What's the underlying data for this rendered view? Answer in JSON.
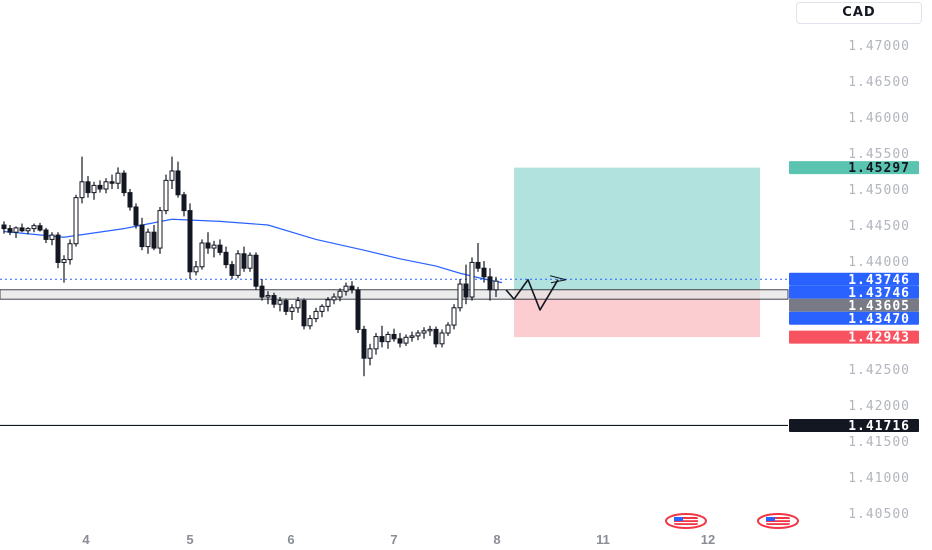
{
  "currency_label": "CAD",
  "chart_data": {
    "type": "candlestick",
    "y_axis": {
      "ticks": [
        "1.47000",
        "1.46500",
        "1.46000",
        "1.45500",
        "1.45000",
        "1.44500",
        "1.44000",
        "1.42500",
        "1.42000",
        "1.41500",
        "1.41000",
        "1.40500"
      ],
      "range": [
        1.4035,
        1.4755
      ]
    },
    "x_axis": {
      "ticks": [
        "4",
        "5",
        "6",
        "7",
        "8",
        "11",
        "12"
      ]
    },
    "candles": [
      [
        1.445,
        1.4455,
        1.4438,
        1.4445
      ],
      [
        1.4445,
        1.445,
        1.4436,
        1.444
      ],
      [
        1.444,
        1.4448,
        1.4432,
        1.4446
      ],
      [
        1.4446,
        1.4452,
        1.444,
        1.4442
      ],
      [
        1.4442,
        1.4447,
        1.4437,
        1.4445
      ],
      [
        1.4445,
        1.4452,
        1.444,
        1.4449
      ],
      [
        1.4449,
        1.4453,
        1.4441,
        1.4443
      ],
      [
        1.4443,
        1.4446,
        1.4425,
        1.443
      ],
      [
        1.443,
        1.444,
        1.4422,
        1.4436
      ],
      [
        1.4436,
        1.444,
        1.439,
        1.4398
      ],
      [
        1.4398,
        1.4408,
        1.437,
        1.4402
      ],
      [
        1.4402,
        1.443,
        1.4395,
        1.4424
      ],
      [
        1.4424,
        1.4492,
        1.442,
        1.4488
      ],
      [
        1.4488,
        1.4545,
        1.448,
        1.451
      ],
      [
        1.451,
        1.4518,
        1.4488,
        1.4495
      ],
      [
        1.4495,
        1.451,
        1.4485,
        1.4505
      ],
      [
        1.4505,
        1.4512,
        1.4495,
        1.45
      ],
      [
        1.45,
        1.4515,
        1.4494,
        1.451
      ],
      [
        1.451,
        1.452,
        1.45,
        1.4508
      ],
      [
        1.4508,
        1.453,
        1.45,
        1.4522
      ],
      [
        1.4522,
        1.4526,
        1.449,
        1.4495
      ],
      [
        1.4495,
        1.45,
        1.447,
        1.4475
      ],
      [
        1.4475,
        1.448,
        1.4445,
        1.445
      ],
      [
        1.445,
        1.446,
        1.4415,
        1.442
      ],
      [
        1.442,
        1.4445,
        1.441,
        1.444
      ],
      [
        1.444,
        1.445,
        1.4415,
        1.4418
      ],
      [
        1.4418,
        1.4475,
        1.441,
        1.447
      ],
      [
        1.447,
        1.452,
        1.4465,
        1.4512
      ],
      [
        1.4512,
        1.4545,
        1.45,
        1.4525
      ],
      [
        1.4525,
        1.4538,
        1.4488,
        1.4492
      ],
      [
        1.4492,
        1.4496,
        1.4462,
        1.447
      ],
      [
        1.447,
        1.448,
        1.4375,
        1.4385
      ],
      [
        1.4385,
        1.44,
        1.438,
        1.4392
      ],
      [
        1.4392,
        1.443,
        1.4388,
        1.4425
      ],
      [
        1.4425,
        1.444,
        1.441,
        1.4418
      ],
      [
        1.4418,
        1.4428,
        1.4405,
        1.4422
      ],
      [
        1.4422,
        1.443,
        1.4408,
        1.4412
      ],
      [
        1.4412,
        1.442,
        1.439,
        1.4395
      ],
      [
        1.4395,
        1.44,
        1.4375,
        1.438
      ],
      [
        1.438,
        1.4415,
        1.4376,
        1.441
      ],
      [
        1.441,
        1.442,
        1.4385,
        1.439
      ],
      [
        1.439,
        1.4412,
        1.4385,
        1.4408
      ],
      [
        1.4408,
        1.4412,
        1.436,
        1.4365
      ],
      [
        1.4365,
        1.4375,
        1.4345,
        1.435
      ],
      [
        1.435,
        1.4358,
        1.434,
        1.4352
      ],
      [
        1.4352,
        1.4356,
        1.4335,
        1.434
      ],
      [
        1.434,
        1.435,
        1.433,
        1.4345
      ],
      [
        1.4345,
        1.4348,
        1.4325,
        1.433
      ],
      [
        1.433,
        1.434,
        1.4318,
        1.4335
      ],
      [
        1.4335,
        1.435,
        1.4328,
        1.4345
      ],
      [
        1.4345,
        1.4348,
        1.4305,
        1.431
      ],
      [
        1.431,
        1.4325,
        1.4305,
        1.432
      ],
      [
        1.432,
        1.4335,
        1.4315,
        1.433
      ],
      [
        1.433,
        1.434,
        1.4322,
        1.4337
      ],
      [
        1.4337,
        1.435,
        1.433,
        1.4346
      ],
      [
        1.4346,
        1.4355,
        1.434,
        1.435
      ],
      [
        1.435,
        1.4362,
        1.4344,
        1.4358
      ],
      [
        1.4358,
        1.437,
        1.4352,
        1.4365
      ],
      [
        1.4365,
        1.4372,
        1.4355,
        1.436
      ],
      [
        1.436,
        1.4364,
        1.43,
        1.4305
      ],
      [
        1.4305,
        1.431,
        1.424,
        1.4265
      ],
      [
        1.4265,
        1.4285,
        1.4255,
        1.4278
      ],
      [
        1.4278,
        1.43,
        1.427,
        1.4295
      ],
      [
        1.4295,
        1.431,
        1.428,
        1.4288
      ],
      [
        1.4288,
        1.4302,
        1.4278,
        1.4298
      ],
      [
        1.4298,
        1.4306,
        1.4288,
        1.4292
      ],
      [
        1.4292,
        1.43,
        1.428,
        1.4286
      ],
      [
        1.4286,
        1.4298,
        1.4282,
        1.4294
      ],
      [
        1.4294,
        1.4302,
        1.4288,
        1.4296
      ],
      [
        1.4296,
        1.4304,
        1.429,
        1.43
      ],
      [
        1.43,
        1.4308,
        1.4292,
        1.4303
      ],
      [
        1.4303,
        1.431,
        1.4296,
        1.4305
      ],
      [
        1.4305,
        1.4309,
        1.428,
        1.4285
      ],
      [
        1.4285,
        1.4305,
        1.428,
        1.43
      ],
      [
        1.43,
        1.4315,
        1.4296,
        1.4311
      ],
      [
        1.4311,
        1.434,
        1.4305,
        1.4335
      ],
      [
        1.4335,
        1.4375,
        1.433,
        1.4368
      ],
      [
        1.4368,
        1.4395,
        1.434,
        1.435
      ],
      [
        1.435,
        1.4405,
        1.4345,
        1.4398
      ],
      [
        1.4398,
        1.4425,
        1.4385,
        1.439
      ],
      [
        1.439,
        1.44,
        1.437,
        1.4378
      ],
      [
        1.4378,
        1.439,
        1.4345,
        1.436
      ],
      [
        1.436,
        1.4378,
        1.435,
        1.4372
      ]
    ],
    "moving_average": [
      [
        0,
        1.4441
      ],
      [
        10,
        1.4433
      ],
      [
        20,
        1.4445
      ],
      [
        28,
        1.4458
      ],
      [
        36,
        1.4455
      ],
      [
        44,
        1.445
      ],
      [
        52,
        1.443
      ],
      [
        60,
        1.4415
      ],
      [
        66,
        1.4403
      ],
      [
        72,
        1.4393
      ],
      [
        76,
        1.4383
      ],
      [
        80,
        1.4375
      ],
      [
        83,
        1.437
      ]
    ],
    "position": {
      "entry": 1.43605,
      "target": 1.45297,
      "stop": 1.42943
    },
    "support_zone": [
      1.4347,
      1.436
    ],
    "horizontal_level": 1.41716,
    "current_price": 1.43746,
    "projection_path": [
      1.436,
      1.4347,
      1.4374,
      1.4332,
      1.4374
    ],
    "price_badges": [
      {
        "label": "1.45297",
        "value": 1.45297,
        "color": "#5bc4b1",
        "text_color": "#131722"
      },
      {
        "label": "1.43746",
        "value": 1.43746,
        "color": "#2962ff",
        "text_color": "#ffffff"
      },
      {
        "label": "1.43746",
        "value": 1.43746,
        "color": "#2962ff",
        "text_color": "#ffffff"
      },
      {
        "label": "1.43605",
        "value": 1.43605,
        "color": "#787b86",
        "text_color": "#ffffff"
      },
      {
        "label": "1.43470",
        "value": 1.4347,
        "color": "#2962ff",
        "text_color": "#ffffff"
      },
      {
        "label": "1.42943",
        "value": 1.42943,
        "color": "#f7525f",
        "text_color": "#ffffff"
      },
      {
        "label": "1.41716",
        "value": 1.41716,
        "color": "#131722",
        "text_color": "#ffffff"
      }
    ],
    "colors": {
      "candle": "#131722",
      "ma": "#2962ff",
      "target_zone": "#b2e2dd",
      "stop_zone": "#fbcdd0",
      "support_zone": "#e6e6e6",
      "current_price_line": "#2962ff",
      "level_line": "#131722"
    },
    "event_icons": [
      "us-flag-icon",
      "us-flag-icon"
    ]
  }
}
